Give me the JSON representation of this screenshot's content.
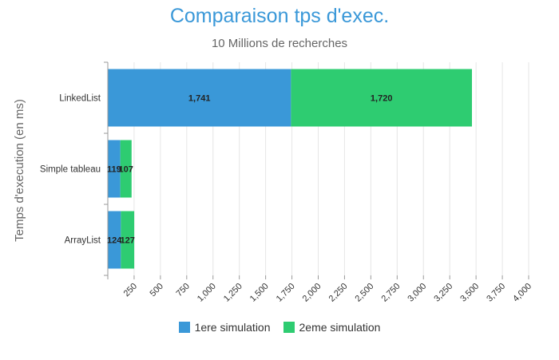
{
  "chart_data": {
    "type": "bar",
    "orientation": "horizontal",
    "stacked": true,
    "title": "Comparaison tps d'exec.",
    "subtitle": "10 Millions de recherches",
    "ylabel": "Temps d'execution (en ms)",
    "xlabel": "",
    "categories": [
      "LinkedList",
      "Simple tableau",
      "ArrayList"
    ],
    "series": [
      {
        "name": "1ere simulation",
        "color": "#3a98d8",
        "values": [
          1741,
          119,
          124
        ],
        "labels": [
          "1,741",
          "119",
          "124"
        ]
      },
      {
        "name": "2eme simulation",
        "color": "#2ecc71",
        "values": [
          1720,
          107,
          127
        ],
        "labels": [
          "1,720",
          "107",
          "127"
        ]
      }
    ],
    "xlim": [
      0,
      4000
    ],
    "xticks": [
      250,
      500,
      750,
      1000,
      1250,
      1500,
      1750,
      2000,
      2250,
      2500,
      2750,
      3000,
      3250,
      3500,
      3750,
      4000
    ],
    "xtick_labels": [
      "250",
      "500",
      "750",
      "1,000",
      "1,250",
      "1,500",
      "1,750",
      "2,000",
      "2,250",
      "2,500",
      "2,750",
      "3,000",
      "3,250",
      "3,500",
      "3,750",
      "4,000"
    ],
    "grid": true,
    "legend_position": "bottom"
  }
}
